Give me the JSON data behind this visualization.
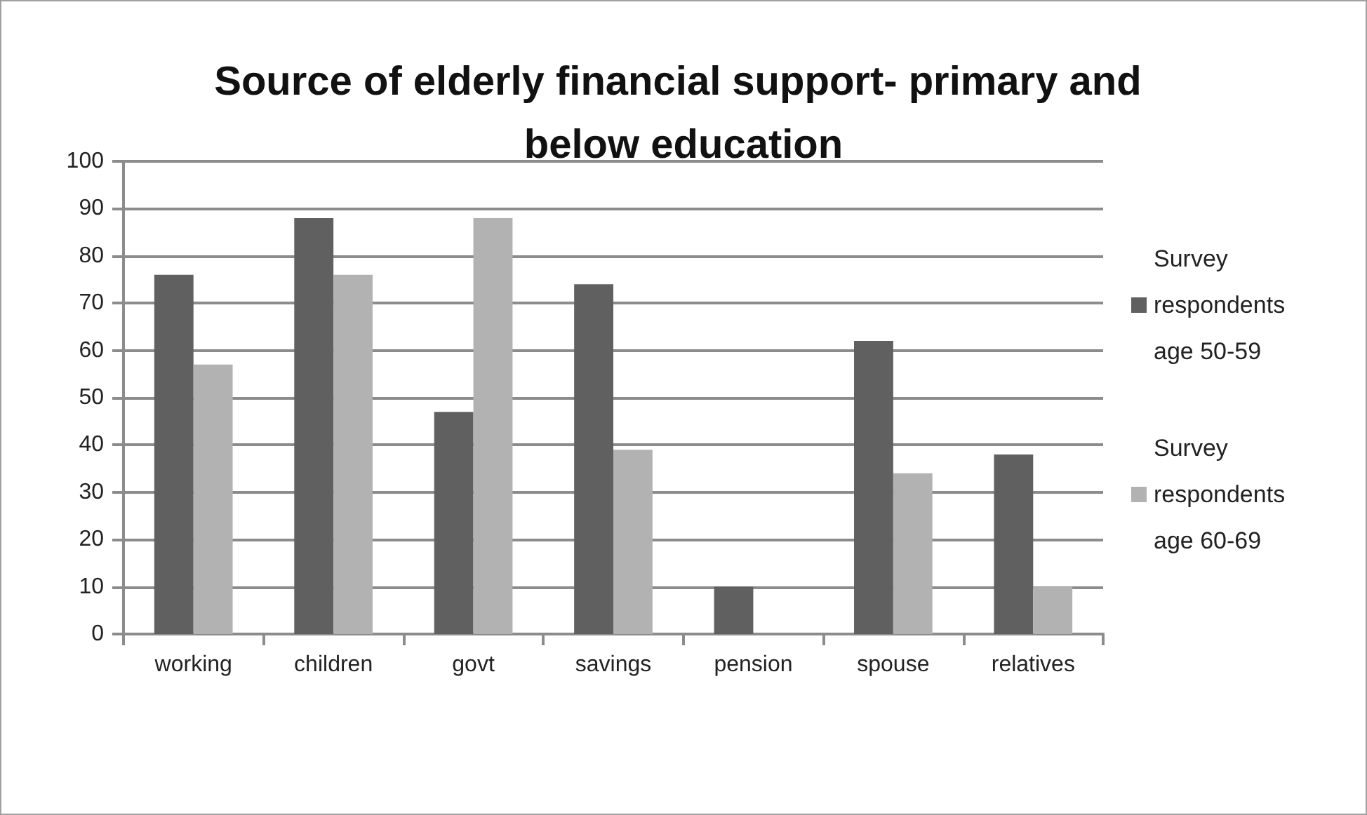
{
  "chart_data": {
    "type": "bar",
    "title": "Source of elderly financial support- primary and below education",
    "categories": [
      "working",
      "children",
      "govt",
      "savings",
      "pension",
      "spouse",
      "relatives"
    ],
    "series": [
      {
        "name": "Survey respondents age 50-59",
        "color": "#606060",
        "values": [
          76,
          88,
          47,
          74,
          10,
          62,
          38
        ]
      },
      {
        "name": "Survey respondents age 60-69",
        "color": "#b2b2b2",
        "values": [
          57,
          76,
          88,
          39,
          null,
          34,
          10
        ]
      }
    ],
    "ylim": [
      0,
      100
    ],
    "yticks": [
      0,
      10,
      20,
      30,
      40,
      50,
      60,
      70,
      80,
      90,
      100
    ],
    "grid": "y",
    "legend": "right"
  }
}
